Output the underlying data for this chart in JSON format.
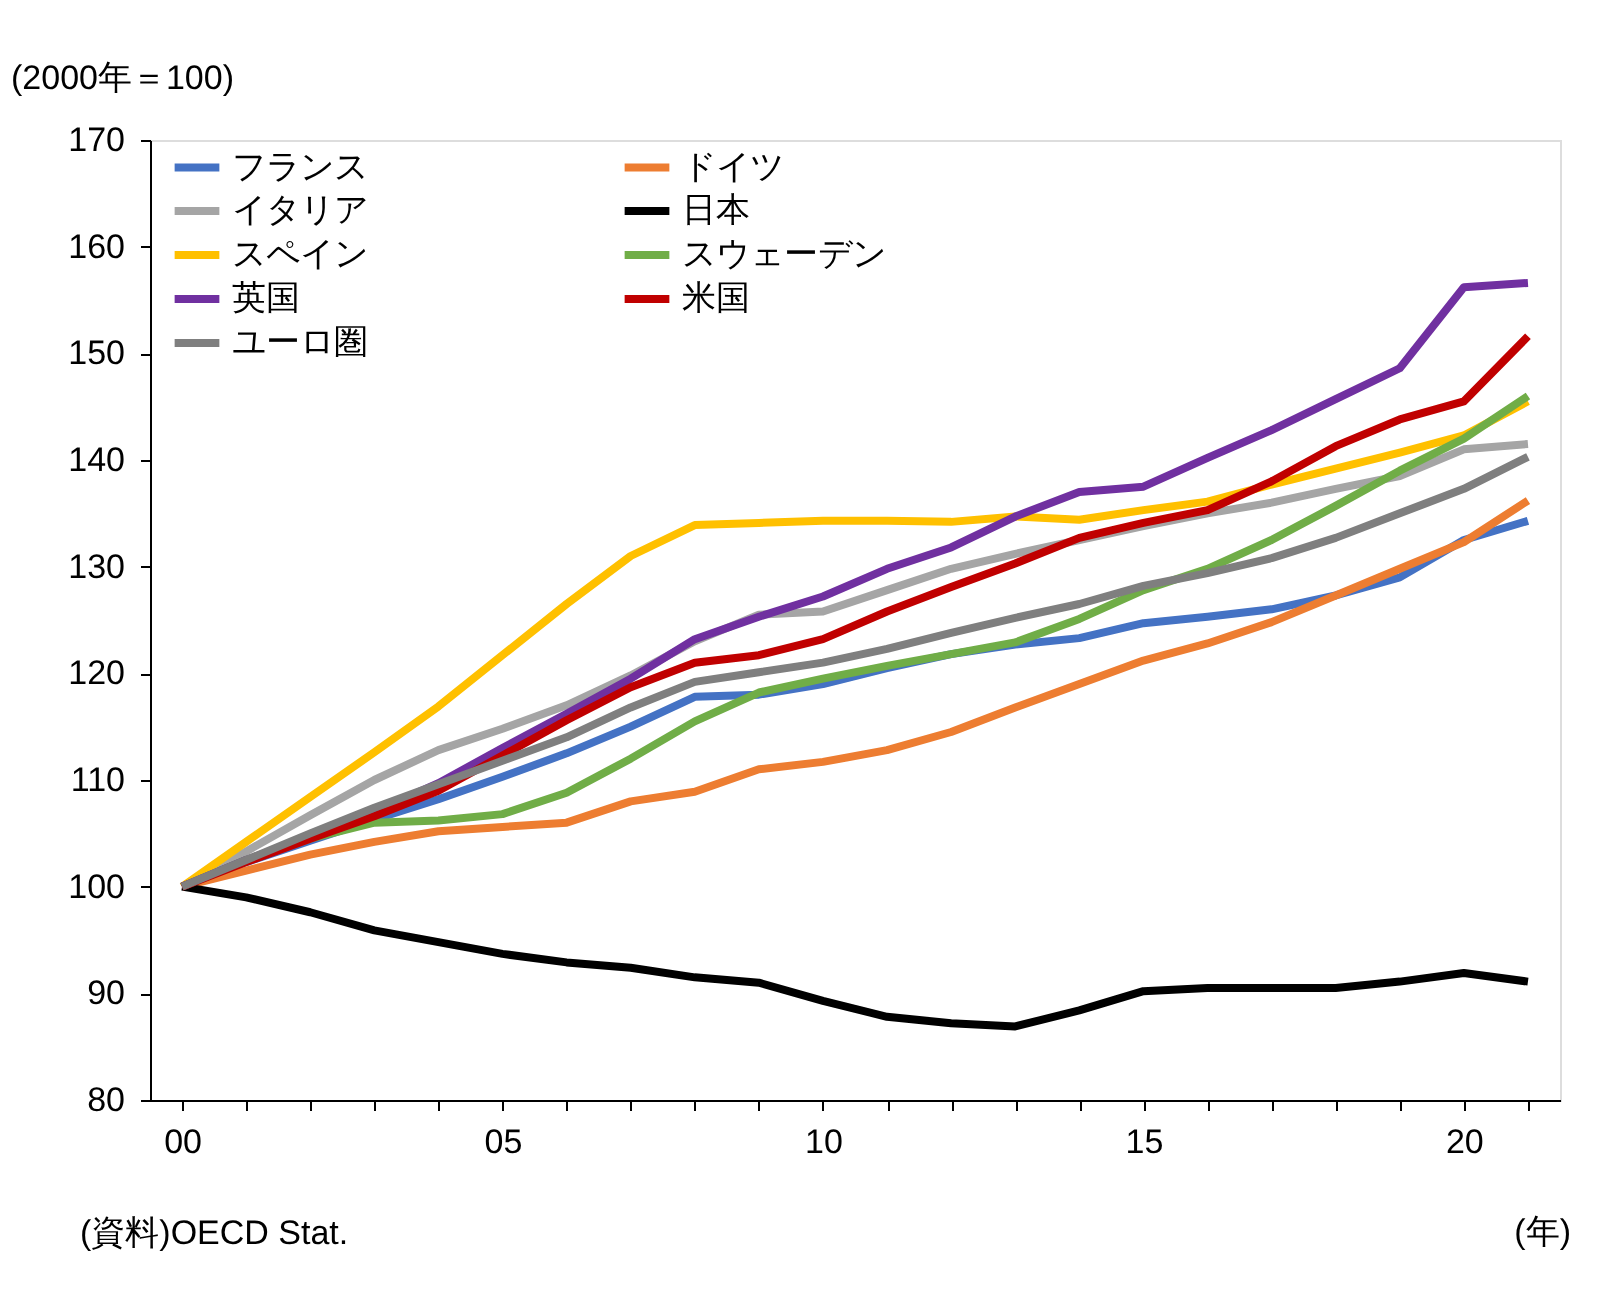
{
  "chart_data": {
    "type": "line",
    "ylabel": "(2000年＝100)",
    "xlabel": "(年)",
    "annotations": [
      "(資料)OECD Stat."
    ],
    "categories": [
      "00",
      null,
      null,
      null,
      null,
      "05",
      null,
      null,
      null,
      null,
      "10",
      null,
      null,
      null,
      null,
      "15",
      null,
      null,
      null,
      null,
      "20",
      null
    ],
    "ylim": [
      80,
      170
    ],
    "yticks": [
      80,
      90,
      100,
      110,
      120,
      130,
      140,
      150,
      160,
      170
    ],
    "grid": false,
    "legend": "top left",
    "marker": "none",
    "line_style": "solid",
    "series": [
      {
        "name": "フランス",
        "color": "#4472c4",
        "values": [
          100,
          102.3,
          104.3,
          106.3,
          108.2,
          110.3,
          112.5,
          115,
          117.8,
          118,
          119,
          120.5,
          121.8,
          122.7,
          123.3,
          124.7,
          125.3,
          126,
          127.3,
          129,
          132.5,
          134.3
        ]
      },
      {
        "name": "ドイツ",
        "color": "#ed7d31",
        "values": [
          100,
          101.5,
          103,
          104.2,
          105.2,
          105.6,
          106,
          108,
          108.9,
          111,
          111.7,
          112.8,
          114.5,
          116.8,
          119,
          121.2,
          122.8,
          124.8,
          127.3,
          129.8,
          132.3,
          136.2
        ]
      },
      {
        "name": "イタリア",
        "color": "#a5a5a5",
        "values": [
          100,
          103.3,
          106.7,
          110,
          112.8,
          114.8,
          117,
          119.8,
          123,
          125.5,
          125.8,
          127.8,
          129.8,
          131.2,
          132.5,
          133.8,
          135,
          136,
          137.3,
          138.5,
          141,
          141.5
        ]
      },
      {
        "name": "日本",
        "color": "#000000",
        "values": [
          100,
          99,
          97.6,
          95.9,
          94.8,
          93.7,
          92.9,
          92.4,
          91.5,
          91,
          89.3,
          87.8,
          87.2,
          86.9,
          88.4,
          90.2,
          90.5,
          90.5,
          90.5,
          91.1,
          91.9,
          91.1
        ]
      },
      {
        "name": "スペイン",
        "color": "#ffc000",
        "values": [
          100,
          104.2,
          108.4,
          112.6,
          116.9,
          121.7,
          126.5,
          131,
          133.9,
          134.1,
          134.3,
          134.3,
          134.2,
          134.7,
          134.4,
          135.3,
          136.1,
          137.7,
          139.2,
          140.7,
          142.3,
          145.5
        ]
      },
      {
        "name": "スウェーデン",
        "color": "#70ad47",
        "values": [
          100,
          102.5,
          104.5,
          106,
          106.2,
          106.8,
          108.8,
          112,
          115.5,
          118.2,
          119.5,
          120.7,
          121.8,
          122.9,
          125.1,
          127.8,
          129.8,
          132.5,
          135.7,
          139,
          142,
          146
        ]
      },
      {
        "name": "英国",
        "color": "#7030a0",
        "values": [
          100,
          102.5,
          104.7,
          107,
          109.7,
          113,
          116.2,
          119.5,
          123.2,
          125.3,
          127.2,
          129.8,
          131.8,
          134.7,
          137,
          137.5,
          140.2,
          142.8,
          145.7,
          148.6,
          156.2,
          156.6
        ]
      },
      {
        "name": "米国",
        "color": "#c00000",
        "values": [
          100,
          102.3,
          104.5,
          106.6,
          109,
          112.3,
          115.6,
          118.7,
          121,
          121.7,
          123.2,
          125.8,
          128.1,
          130.3,
          132.7,
          134.1,
          135.3,
          138,
          141.3,
          143.8,
          145.5,
          151.6
        ]
      },
      {
        "name": "ユーロ圏",
        "color": "#7f7f7f",
        "values": [
          100,
          102.5,
          105,
          107.4,
          109.6,
          111.8,
          114,
          116.8,
          119.2,
          120.1,
          121,
          122.3,
          123.8,
          125.2,
          126.5,
          128.2,
          129.4,
          130.8,
          132.7,
          135,
          137.3,
          140.3
        ]
      }
    ]
  }
}
